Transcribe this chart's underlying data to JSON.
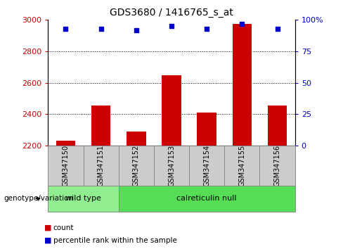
{
  "title": "GDS3680 / 1416765_s_at",
  "samples": [
    "GSM347150",
    "GSM347151",
    "GSM347152",
    "GSM347153",
    "GSM347154",
    "GSM347155",
    "GSM347156"
  ],
  "counts": [
    2230,
    2455,
    2290,
    2650,
    2410,
    2975,
    2455
  ],
  "percentile_ranks": [
    93,
    93,
    92,
    95,
    93,
    97,
    93
  ],
  "ylim_left": [
    2200,
    3000
  ],
  "ylim_right": [
    0,
    100
  ],
  "yticks_left": [
    2200,
    2400,
    2600,
    2800,
    3000
  ],
  "yticks_right": [
    0,
    25,
    50,
    75,
    100
  ],
  "bar_color": "#cc0000",
  "dot_color": "#0000cc",
  "bar_bottom": 2200,
  "groups": [
    {
      "label": "wild type",
      "start": 0,
      "end": 2,
      "color": "#90ee90"
    },
    {
      "label": "calreticulin null",
      "start": 2,
      "end": 7,
      "color": "#55dd55"
    }
  ],
  "genotype_label": "genotype/variation",
  "legend_count_label": "count",
  "legend_percentile_label": "percentile rank within the sample",
  "plot_bg_color": "#ffffff",
  "tick_label_color_left": "#cc0000",
  "tick_label_color_right": "#0000cc",
  "grid_yticks": [
    2400,
    2600,
    2800
  ],
  "gray_box_color": "#cccccc",
  "box_edge_color": "#888888"
}
